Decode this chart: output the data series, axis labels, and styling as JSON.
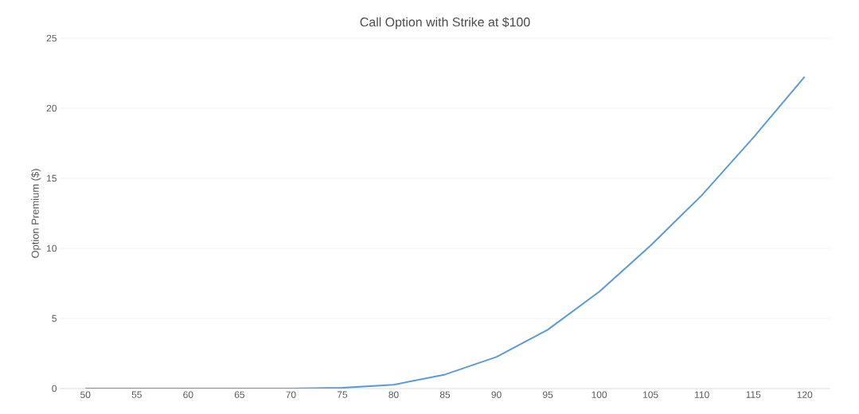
{
  "chart_data": {
    "type": "line",
    "title": "Call Option with Strike at $100",
    "ylabel": "Option Premium ($)",
    "categories": [
      "50",
      "55",
      "60",
      "65",
      "70",
      "75",
      "80",
      "85",
      "90",
      "95",
      "100",
      "105",
      "110",
      "115",
      "120"
    ],
    "series": [
      {
        "color": "#5b9bd5",
        "values": [
          0,
          0,
          0,
          0,
          0,
          0.05,
          0.27,
          1.0,
          2.25,
          4.2,
          6.9,
          10.2,
          13.8,
          17.9,
          22.25
        ]
      }
    ],
    "ylim": [
      0,
      25
    ],
    "yticks": [
      0,
      5,
      10,
      15,
      20,
      25
    ],
    "grid": "y"
  }
}
